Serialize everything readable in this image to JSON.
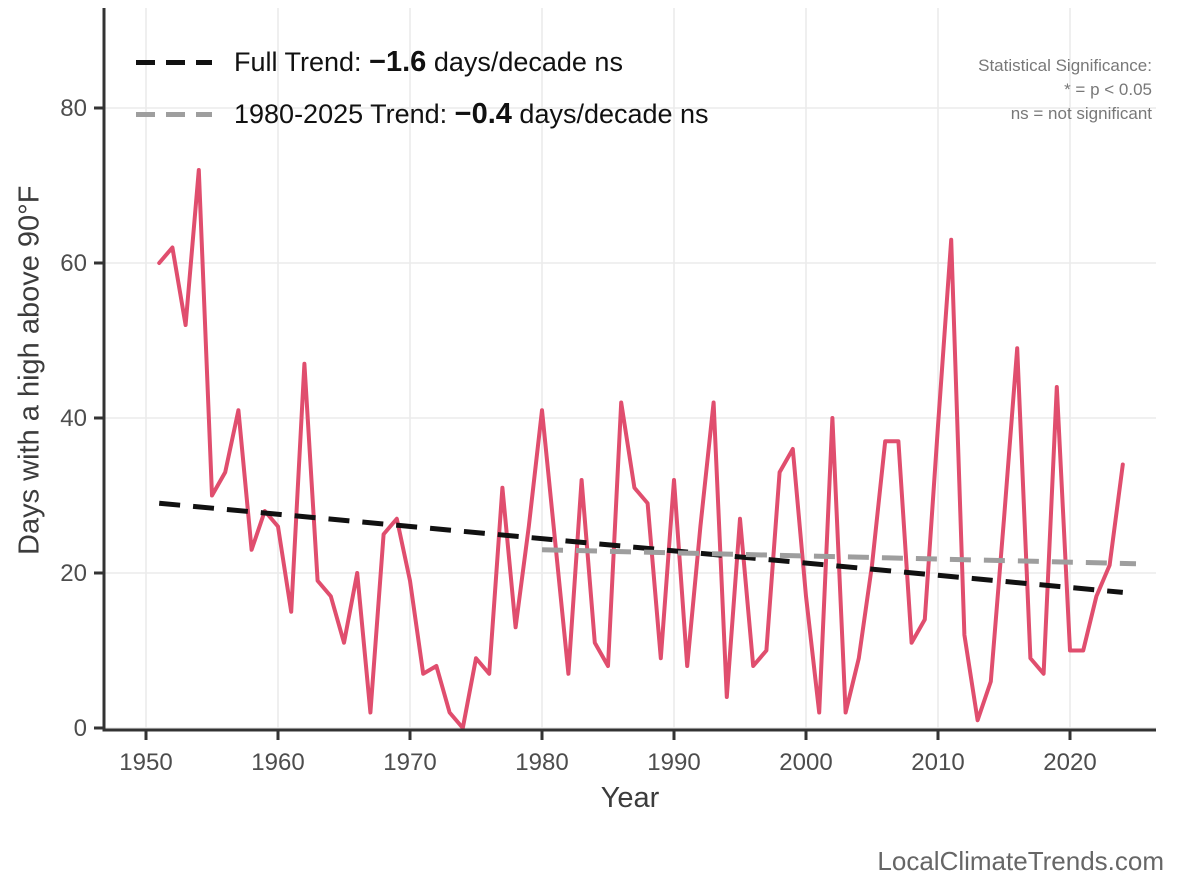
{
  "chart_data": {
    "type": "line",
    "title": "",
    "xlabel": "Year",
    "ylabel": "Days with a high above 90°F",
    "x_ticks": [
      1950,
      1960,
      1970,
      1980,
      1990,
      2000,
      2010,
      2020
    ],
    "y_ticks": [
      0,
      20,
      40,
      60,
      80
    ],
    "xlim": [
      1946.7,
      2026.5
    ],
    "ylim": [
      0,
      92
    ],
    "grid": "on",
    "legend_position": "top-left inside",
    "series": [
      {
        "name": "Days with a high above 90°F",
        "color": "#e04e6e",
        "x": [
          1951,
          1952,
          1953,
          1954,
          1955,
          1956,
          1957,
          1958,
          1959,
          1960,
          1961,
          1962,
          1963,
          1964,
          1965,
          1966,
          1967,
          1968,
          1969,
          1970,
          1971,
          1972,
          1973,
          1974,
          1975,
          1976,
          1977,
          1978,
          1979,
          1980,
          1981,
          1982,
          1983,
          1984,
          1985,
          1986,
          1987,
          1988,
          1989,
          1990,
          1991,
          1992,
          1993,
          1994,
          1995,
          1996,
          1997,
          1998,
          1999,
          2000,
          2001,
          2002,
          2003,
          2004,
          2005,
          2006,
          2007,
          2008,
          2009,
          2010,
          2011,
          2012,
          2013,
          2014,
          2015,
          2016,
          2017,
          2018,
          2019,
          2020,
          2021,
          2022,
          2023,
          2024
        ],
        "values": [
          60,
          62,
          52,
          72,
          30,
          33,
          41,
          23,
          28,
          26,
          15,
          47,
          19,
          17,
          11,
          20,
          2,
          25,
          27,
          19,
          7,
          8,
          2,
          0,
          9,
          7,
          31,
          13,
          26,
          41,
          24,
          7,
          32,
          11,
          8,
          42,
          31,
          29,
          9,
          32,
          8,
          26,
          42,
          4,
          27,
          8,
          10,
          33,
          36,
          17,
          2,
          40,
          2,
          9,
          21,
          37,
          37,
          11,
          14,
          39,
          63,
          12,
          1,
          6,
          27,
          49,
          9,
          7,
          44,
          10,
          10,
          17,
          21,
          34
        ]
      }
    ],
    "trend_lines": [
      {
        "name": "Full Trend",
        "slope_days_per_decade": -1.6,
        "significance": "ns",
        "color": "#111111",
        "style": "dashed",
        "x": [
          1951,
          2024
        ],
        "values": [
          29,
          17.5
        ]
      },
      {
        "name": "1980-2025 Trend",
        "slope_days_per_decade": -0.4,
        "significance": "ns",
        "color": "#9e9e9e",
        "style": "dashed",
        "x": [
          1980,
          2025
        ],
        "values": [
          23,
          21.2
        ]
      }
    ]
  },
  "legend": {
    "entries": [
      {
        "prefix": "Full Trend: ",
        "value": "−1.6",
        "suffix": " days/decade ns",
        "color": "#111111"
      },
      {
        "prefix": "1980-2025 Trend: ",
        "value": "−0.4",
        "suffix": " days/decade ns",
        "color": "#9e9e9e"
      }
    ]
  },
  "stat_note": {
    "line1": "Statistical Significance:",
    "line2": "* = p < 0.05",
    "line3": "ns = not significant"
  },
  "axis": {
    "x_label": "Year",
    "y_label": "Days with a high above 90°F"
  },
  "watermark": "LocalClimateTrends.com",
  "colors": {
    "series": "#e04e6e",
    "trend_full": "#111111",
    "trend_recent": "#9e9e9e",
    "grid": "#ebebeb",
    "axis_line": "#333333",
    "tick_label": "#4d4d4d",
    "note_text": "#787878",
    "watermark_text": "#666666",
    "background": "#ffffff"
  }
}
